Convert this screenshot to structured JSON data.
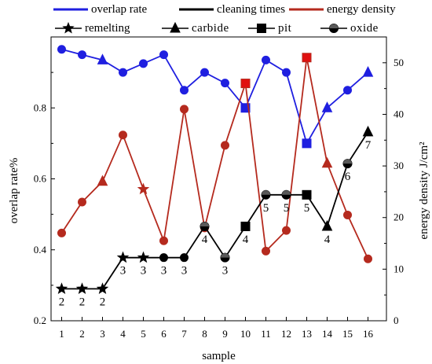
{
  "chart_data": {
    "type": "line",
    "xlabel": "sample",
    "ylabel_left": "overlap rate%",
    "ylabel_right": "energy density J/cm²",
    "categories": [
      "1",
      "2",
      "3",
      "4",
      "5",
      "6",
      "7",
      "8",
      "9",
      "10",
      "11",
      "12",
      "13",
      "14",
      "15",
      "16"
    ],
    "y_left": {
      "lim": [
        0.2,
        1.0
      ],
      "ticks": [
        "0.2",
        "0.4",
        "0.6",
        "0.8"
      ]
    },
    "y_right": {
      "lim": [
        0,
        55
      ],
      "ticks": [
        "0",
        "10",
        "20",
        "30",
        "40",
        "50"
      ]
    },
    "legend": {
      "row1": [
        "overlap rate",
        "cleaning times",
        "energy density"
      ],
      "row2": [
        "remelting",
        "carbide",
        "pit",
        "oxide"
      ]
    },
    "series": [
      {
        "name": "overlap rate",
        "axis": "left",
        "color": "#1f1fe0",
        "marker": "circle",
        "values": [
          0.965,
          0.95,
          0.935,
          0.9,
          0.925,
          0.95,
          0.85,
          0.9,
          0.87,
          0.8,
          0.935,
          0.9,
          0.7,
          0.8,
          0.85,
          0.9
        ],
        "marker_shapes": [
          "circle",
          "circle",
          "triangle",
          "circle",
          "circle",
          "circle",
          "circle",
          "circle",
          "circle",
          "square",
          "circle",
          "circle",
          "square",
          "triangle",
          "circle",
          "triangle"
        ]
      },
      {
        "name": "energy density",
        "axis": "right",
        "color": "#b52a1e",
        "marker": "circle",
        "values": [
          17,
          23,
          27,
          36,
          25.5,
          15.5,
          41,
          18,
          34,
          46,
          13.5,
          17.5,
          51,
          30.5,
          20.5,
          12
        ],
        "marker_shapes": [
          "circle",
          "circle",
          "triangle",
          "circle",
          "star",
          "circle",
          "circle",
          "circle",
          "circle",
          "square",
          "circle",
          "circle",
          "square",
          "triangle",
          "circle",
          "circle"
        ],
        "highlight_fill": {
          "9": "#e01010",
          "12": "#e01010"
        }
      },
      {
        "name": "cleaning times",
        "axis": "left",
        "color": "#000000",
        "values": [
          0.29,
          0.29,
          0.29,
          0.378,
          0.378,
          0.378,
          0.378,
          0.466,
          0.378,
          0.466,
          0.555,
          0.555,
          0.555,
          0.466,
          0.643,
          0.732
        ],
        "counts": [
          "2",
          "2",
          "2",
          "3",
          "3",
          "3",
          "3",
          "4",
          "3",
          "4",
          "5",
          "5",
          "5",
          "4",
          "6",
          "7"
        ],
        "marker_shapes": [
          "star",
          "star",
          "star",
          "star",
          "star",
          "circle",
          "circle",
          "oxide",
          "oxide",
          "square",
          "oxide",
          "oxide",
          "square",
          "triangle",
          "oxide",
          "triangle"
        ]
      }
    ]
  }
}
